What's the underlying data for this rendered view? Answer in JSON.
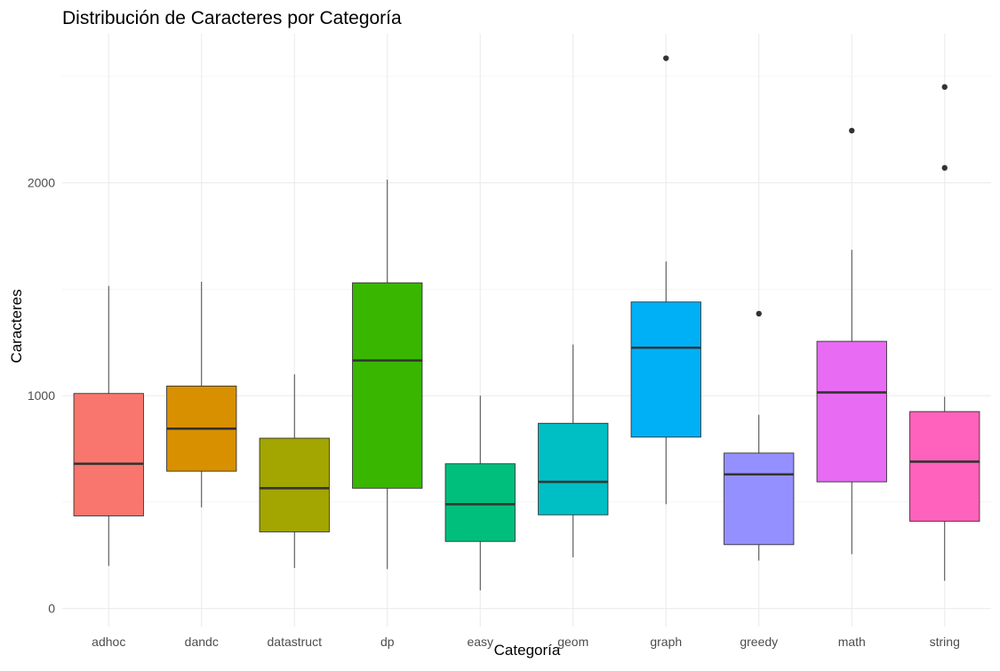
{
  "chart_data": {
    "type": "boxplot",
    "title": "Distribución de Caracteres por Categoría",
    "xlabel": "Categoría",
    "ylabel": "Caracteres",
    "ylim": [
      -85,
      2700
    ],
    "yticks": [
      0,
      1000,
      2000
    ],
    "grid": true,
    "legend": "none",
    "categories": [
      "adhoc",
      "dandc",
      "datastruct",
      "dp",
      "easy",
      "geom",
      "graph",
      "greedy",
      "math",
      "string"
    ],
    "series": [
      {
        "category": "adhoc",
        "color": "#F8766D",
        "min": 200,
        "q1": 435,
        "median": 680,
        "q3": 1010,
        "max": 1515,
        "outliers": []
      },
      {
        "category": "dandc",
        "color": "#D89000",
        "min": 475,
        "q1": 645,
        "median": 845,
        "q3": 1045,
        "max": 1535,
        "outliers": []
      },
      {
        "category": "datastruct",
        "color": "#A3A500",
        "min": 190,
        "q1": 360,
        "median": 565,
        "q3": 800,
        "max": 1100,
        "outliers": []
      },
      {
        "category": "dp",
        "color": "#39B600",
        "min": 185,
        "q1": 565,
        "median": 1165,
        "q3": 1530,
        "max": 2015,
        "outliers": []
      },
      {
        "category": "easy",
        "color": "#00BF7D",
        "min": 85,
        "q1": 315,
        "median": 490,
        "q3": 680,
        "max": 1000,
        "outliers": []
      },
      {
        "category": "geom",
        "color": "#00BFC4",
        "min": 240,
        "q1": 440,
        "median": 595,
        "q3": 870,
        "max": 1240,
        "outliers": []
      },
      {
        "category": "graph",
        "color": "#00B0F6",
        "min": 490,
        "q1": 805,
        "median": 1225,
        "q3": 1440,
        "max": 1630,
        "outliers": [
          2585
        ]
      },
      {
        "category": "greedy",
        "color": "#9590FF",
        "min": 225,
        "q1": 300,
        "median": 630,
        "q3": 730,
        "max": 910,
        "outliers": [
          1385
        ]
      },
      {
        "category": "math",
        "color": "#E76BF3",
        "min": 255,
        "q1": 595,
        "median": 1015,
        "q3": 1255,
        "max": 1685,
        "outliers": [
          2245
        ]
      },
      {
        "category": "string",
        "color": "#FF62BC",
        "min": 130,
        "q1": 410,
        "median": 690,
        "q3": 925,
        "max": 995,
        "outliers": [
          2070,
          2450
        ]
      }
    ]
  }
}
